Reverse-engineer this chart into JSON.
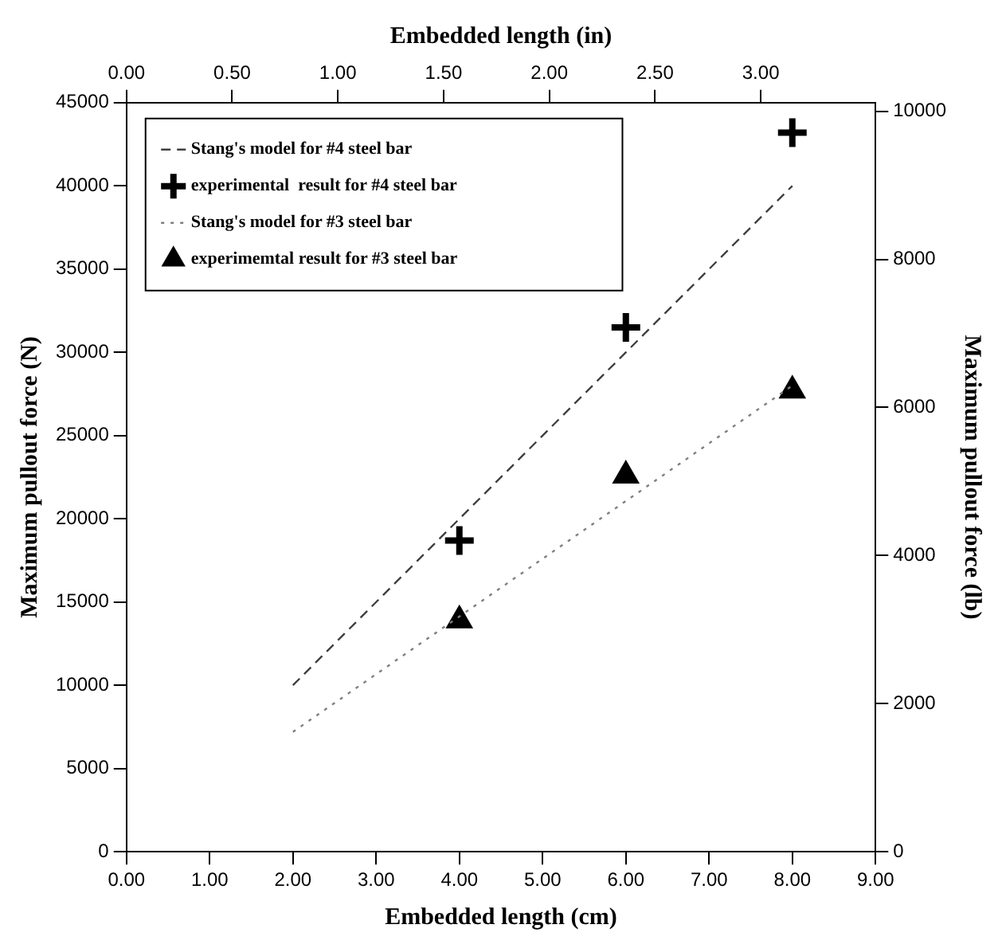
{
  "chart_data": {
    "type": "line",
    "xlabel": "Embedded length (cm)",
    "x2label": "Embedded length (in)",
    "ylabel": "Maximum pullout force (N)",
    "y2label": "Maximum pullout force (lb)",
    "xlim": [
      0,
      9
    ],
    "xticks": [
      {
        "value": 0,
        "label": "0.00"
      },
      {
        "value": 1,
        "label": "1.00"
      },
      {
        "value": 2,
        "label": "2.00"
      },
      {
        "value": 3,
        "label": "3.00"
      },
      {
        "value": 4,
        "label": "4.00"
      },
      {
        "value": 5,
        "label": "5.00"
      },
      {
        "value": 6,
        "label": "6.00"
      },
      {
        "value": 7,
        "label": "7.00"
      },
      {
        "value": 8,
        "label": "8.00"
      },
      {
        "value": 9,
        "label": "9.00"
      }
    ],
    "x2lim": [
      0,
      3.543
    ],
    "x2ticks": [
      {
        "value": 0,
        "label": "0.00"
      },
      {
        "value": 0.5,
        "label": "0.50"
      },
      {
        "value": 1,
        "label": "1.00"
      },
      {
        "value": 1.5,
        "label": "1.50"
      },
      {
        "value": 2,
        "label": "2.00"
      },
      {
        "value": 2.5,
        "label": "2.50"
      },
      {
        "value": 3,
        "label": "3.00"
      }
    ],
    "ylim": [
      0,
      45000
    ],
    "yticks": [
      0,
      5000,
      10000,
      15000,
      20000,
      25000,
      30000,
      35000,
      40000,
      45000
    ],
    "y2lim": [
      0,
      10117
    ],
    "y2ticks": [
      0,
      2000,
      4000,
      6000,
      8000,
      10000
    ],
    "grid": false,
    "legend": "top left",
    "series": [
      {
        "name": "Stang's model for #4 steel bar",
        "type": "line",
        "color": "#404040",
        "line_style": "dashed",
        "marker": "none",
        "x": [
          2,
          8
        ],
        "values": [
          10000,
          40000
        ]
      },
      {
        "name": "experimental  result for #4 steel bar",
        "type": "scatter",
        "color": "#000000",
        "marker": "cross",
        "x": [
          4,
          6,
          8
        ],
        "values": [
          18700,
          31500,
          43200
        ]
      },
      {
        "name": "Stang's model for #3 steel bar",
        "type": "line",
        "color": "#808080",
        "line_style": "dotted",
        "marker": "none",
        "x": [
          2,
          8
        ],
        "values": [
          7200,
          28000
        ]
      },
      {
        "name": "experimemtal result for #3 steel bar",
        "type": "scatter",
        "color": "#000000",
        "marker": "triangle",
        "x": [
          4,
          6,
          8
        ],
        "values": [
          13900,
          22600,
          27700
        ]
      }
    ]
  }
}
